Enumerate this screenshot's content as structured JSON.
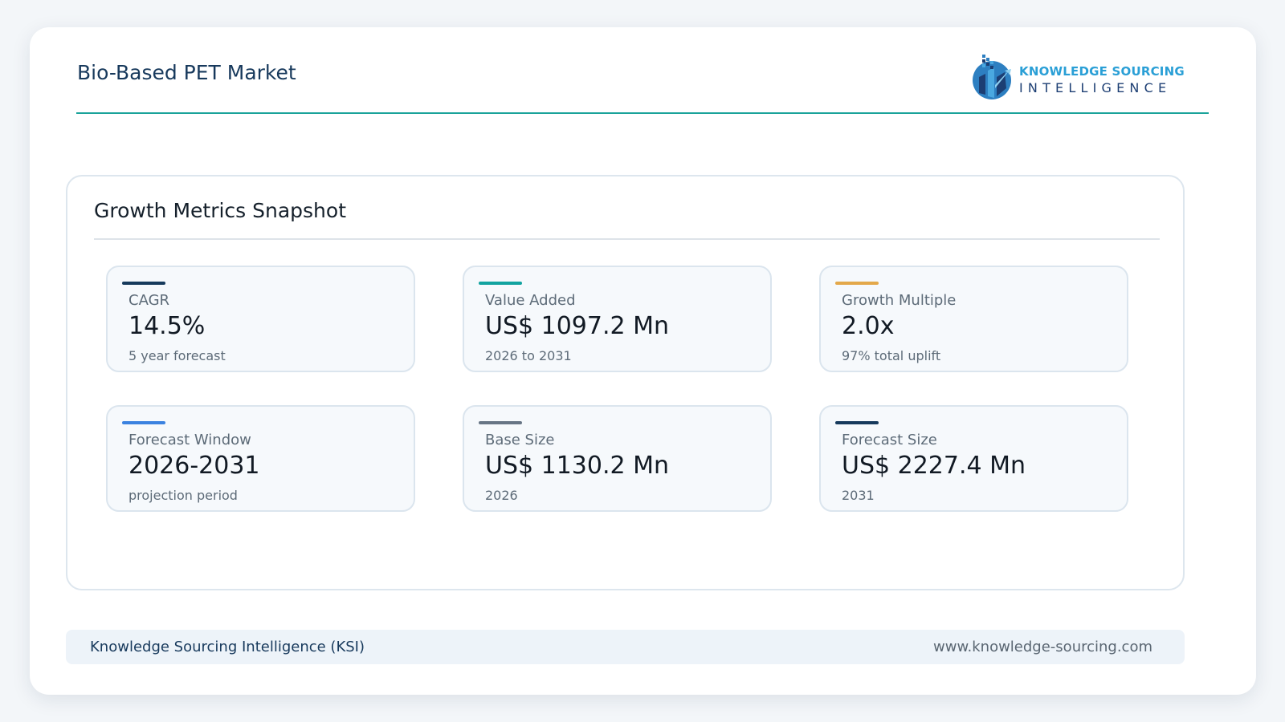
{
  "header": {
    "title": "Bio-Based PET Market",
    "logo": {
      "line1": "KNOWLEDGE SOURCING",
      "line2": "INTELLIGENCE"
    }
  },
  "panel": {
    "title": "Growth Metrics Snapshot",
    "metrics": [
      {
        "label": "CAGR",
        "value": "14.5%",
        "note": "5 year forecast",
        "accent": "#163a5c"
      },
      {
        "label": "Value Added",
        "value": "US$ 1097.2 Mn",
        "note": "2026 to 2031",
        "accent": "#12a3a0"
      },
      {
        "label": "Growth Multiple",
        "value": "2.0x",
        "note": "97% total uplift",
        "accent": "#e3a84a"
      },
      {
        "label": "Forecast Window",
        "value": "2026-2031",
        "note": "projection period",
        "accent": "#3b82e0"
      },
      {
        "label": "Base Size",
        "value": "US$ 1130.2 Mn",
        "note": "2026",
        "accent": "#677585"
      },
      {
        "label": "Forecast Size",
        "value": "US$ 2227.4 Mn",
        "note": "2031",
        "accent": "#163a5c"
      }
    ]
  },
  "footer": {
    "left": "Knowledge Sourcing Intelligence (KSI)",
    "right": "www.knowledge-sourcing.com"
  }
}
